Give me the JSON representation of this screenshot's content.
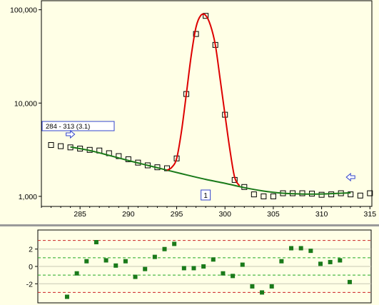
{
  "colors": {
    "background": "#ffffe6",
    "fit_curve": "#dd0000",
    "baseline": "#1a7a1a",
    "residual_marker": "#1a7a1a",
    "range_arrow": "#3344cc",
    "threshold_line": "#cc2222",
    "sigma_line": "#22aa22"
  },
  "chart_data": [
    {
      "type": "scatter",
      "title": "",
      "xlabel": "",
      "ylabel": "",
      "y_scale": "log",
      "xlim": [
        281,
        315.2
      ],
      "ylim": [
        780,
        125000
      ],
      "x_ticks": [
        285,
        290,
        295,
        300,
        305,
        310,
        315
      ],
      "x_tick_labels": [
        "285",
        "290",
        "295",
        "300",
        "305",
        "310",
        "315"
      ],
      "y_ticks": [
        1000,
        10000,
        100000
      ],
      "y_tick_labels": [
        "1,000",
        "10,000",
        "100,000"
      ],
      "grid": false,
      "range_label": "284 - 313 (3.1)",
      "range_start": 284,
      "range_end": 313,
      "peak_label": "1",
      "peak_label_x": 298,
      "series": [
        {
          "kind": "points",
          "marker": "open-square",
          "x": [
            282,
            283,
            284,
            285,
            286,
            287,
            288,
            289,
            290,
            291,
            292,
            293,
            294,
            295,
            296,
            297,
            298,
            299,
            300,
            301,
            302,
            303,
            304,
            305,
            306,
            307,
            308,
            309,
            310,
            311,
            312,
            313,
            314,
            315
          ],
          "y": [
            3550,
            3450,
            3350,
            3250,
            3150,
            3100,
            2900,
            2700,
            2500,
            2300,
            2150,
            2050,
            2000,
            2550,
            12500,
            55000,
            86000,
            42000,
            7500,
            1500,
            1260,
            1050,
            1000,
            1000,
            1080,
            1080,
            1080,
            1070,
            1040,
            1050,
            1080,
            1050,
            1020,
            1080
          ]
        },
        {
          "kind": "line",
          "x": [
            284,
            286,
            288,
            290,
            292,
            294,
            296,
            298,
            300,
            302,
            304,
            306,
            308,
            310,
            312,
            313
          ],
          "y": [
            3380,
            3100,
            2750,
            2420,
            2150,
            1910,
            1700,
            1520,
            1380,
            1240,
            1140,
            1080,
            1060,
            1060,
            1080,
            1090
          ]
        },
        {
          "kind": "line",
          "x": [
            294,
            294.5,
            295,
            295.5,
            296,
            296.5,
            297,
            297.5,
            298,
            298.5,
            299,
            299.5,
            300,
            300.5,
            301,
            301.5
          ],
          "y": [
            1910,
            2050,
            2550,
            5000,
            12500,
            32000,
            65000,
            87000,
            87000,
            68000,
            42000,
            18000,
            7500,
            3200,
            1600,
            1300
          ]
        }
      ]
    },
    {
      "type": "scatter",
      "title": "",
      "xlabel": "",
      "ylabel": "",
      "xlim": [
        281,
        315.2
      ],
      "ylim": [
        -4.2,
        4.2
      ],
      "y_ticks": [
        -2,
        0,
        2
      ],
      "y_tick_labels": [
        "-2",
        "0",
        "2"
      ],
      "threshold_lines": [
        -3,
        3
      ],
      "sigma_lines": [
        -1,
        1
      ],
      "gridlines": [
        -2,
        0,
        2
      ],
      "series": [
        {
          "kind": "points",
          "marker": "filled-square",
          "x": [
            284,
            285,
            286,
            287,
            288,
            289,
            290,
            291,
            292,
            293,
            294,
            295,
            296,
            297,
            298,
            299,
            300,
            301,
            302,
            303,
            304,
            305,
            306,
            307,
            308,
            309,
            310,
            311,
            312,
            313
          ],
          "y": [
            -3.5,
            -0.8,
            0.6,
            2.8,
            0.7,
            0.1,
            0.6,
            -1.2,
            -0.3,
            1.1,
            2.0,
            2.6,
            -0.2,
            -0.2,
            0.0,
            0.8,
            -0.8,
            -1.1,
            0.2,
            -2.3,
            -3.0,
            -2.3,
            0.6,
            2.1,
            2.1,
            1.8,
            0.3,
            0.5,
            0.7,
            -1.8
          ]
        }
      ]
    }
  ]
}
